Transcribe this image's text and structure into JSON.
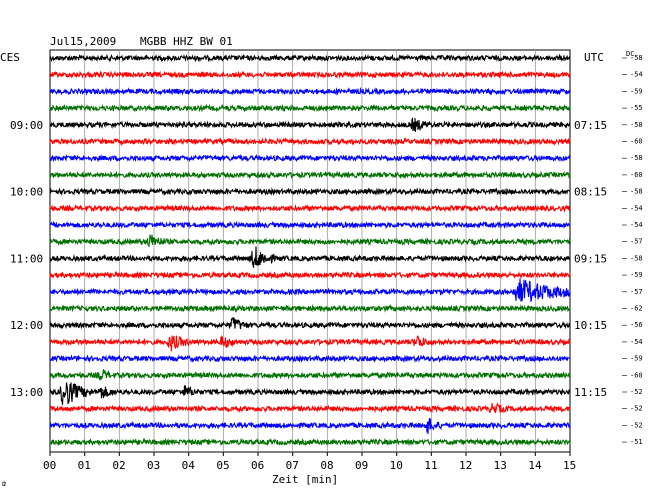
{
  "header": {
    "date": "Jul15,2009",
    "station": "MGBB HHZ BW 01",
    "left_tz": "CES",
    "right_tz": "UTC",
    "dc_label": "DC"
  },
  "chart_data": {
    "type": "line",
    "title": "Jul15,2009   MGBB HHZ BW 01",
    "xlabel": "Zeit [min]",
    "xlim": [
      0,
      15
    ],
    "x_ticks": [
      "00",
      "01",
      "02",
      "03",
      "04",
      "05",
      "06",
      "07",
      "08",
      "09",
      "10",
      "11",
      "12",
      "13",
      "14",
      "15"
    ],
    "left_time_labels": [
      {
        "row": 4,
        "text": "09:00"
      },
      {
        "row": 8,
        "text": "10:00"
      },
      {
        "row": 12,
        "text": "11:00"
      },
      {
        "row": 16,
        "text": "12:00"
      },
      {
        "row": 20,
        "text": "13:00"
      }
    ],
    "right_time_labels": [
      {
        "row": 4,
        "text": "07:15"
      },
      {
        "row": 8,
        "text": "08:15"
      },
      {
        "row": 12,
        "text": "09:15"
      },
      {
        "row": 16,
        "text": "10:15"
      },
      {
        "row": 20,
        "text": "11:15"
      }
    ],
    "dc_offsets": [
      "-58",
      "-54",
      "-59",
      "-55",
      "-58",
      "-60",
      "-58",
      "-60",
      "-58",
      "-54",
      "-54",
      "-57",
      "-58",
      "-59",
      "-57",
      "-62",
      "-56",
      "-54",
      "-59",
      "-60",
      "-52",
      "-52",
      "-52",
      "-51"
    ],
    "trace_colors": [
      "#000000",
      "#ff0000",
      "#0000ff",
      "#007000"
    ],
    "rows": 24,
    "events": [
      {
        "row": 4,
        "x": 10.5,
        "amp": 1.4,
        "dur": 0.5
      },
      {
        "row": 11,
        "x": 2.9,
        "amp": 1.6,
        "dur": 0.5
      },
      {
        "row": 12,
        "x": 5.9,
        "amp": 2.8,
        "dur": 0.6
      },
      {
        "row": 14,
        "x": 13.5,
        "amp": 3.0,
        "dur": 2.0
      },
      {
        "row": 16,
        "x": 5.3,
        "amp": 1.8,
        "dur": 0.4
      },
      {
        "row": 17,
        "x": 3.5,
        "amp": 1.8,
        "dur": 0.6
      },
      {
        "row": 17,
        "x": 5.0,
        "amp": 1.4,
        "dur": 0.4
      },
      {
        "row": 17,
        "x": 10.6,
        "amp": 1.4,
        "dur": 0.4
      },
      {
        "row": 19,
        "x": 1.5,
        "amp": 1.3,
        "dur": 0.3
      },
      {
        "row": 20,
        "x": 0.4,
        "amp": 3.6,
        "dur": 0.8
      },
      {
        "row": 20,
        "x": 1.5,
        "amp": 1.4,
        "dur": 0.4
      },
      {
        "row": 20,
        "x": 3.9,
        "amp": 1.3,
        "dur": 0.4
      },
      {
        "row": 21,
        "x": 12.8,
        "amp": 1.2,
        "dur": 0.4
      },
      {
        "row": 22,
        "x": 10.9,
        "amp": 1.8,
        "dur": 0.4
      }
    ]
  }
}
